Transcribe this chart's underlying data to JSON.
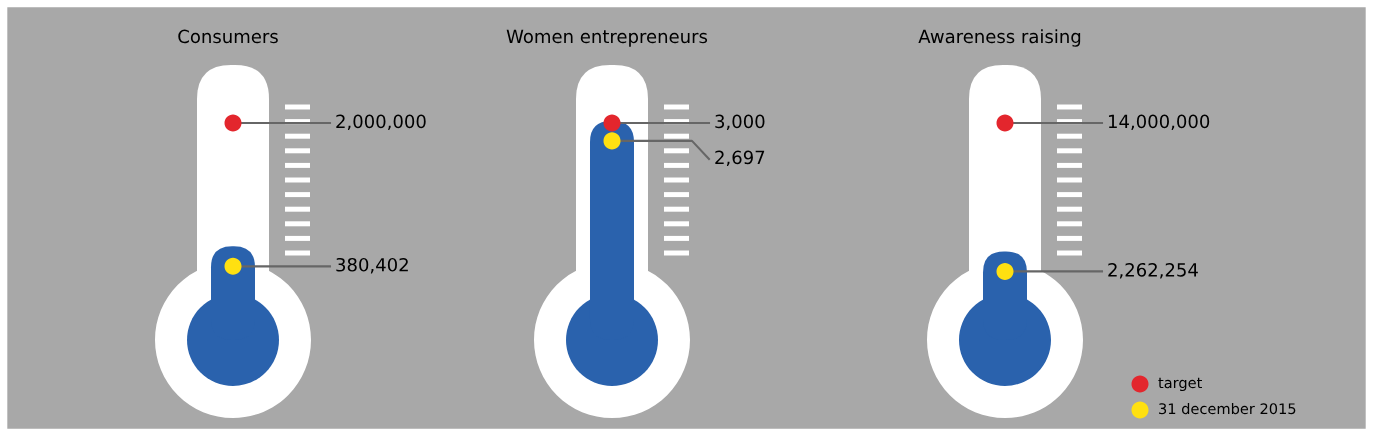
{
  "chart_data": {
    "type": "other",
    "categories": [
      "Consumers",
      "Women entrepreneurs",
      "Awareness raising"
    ],
    "series": [
      {
        "name": "target",
        "color": "#e3262d",
        "values": [
          2000000,
          3000,
          14000000
        ],
        "value_labels": [
          "2,000,000",
          "3,000",
          "14,000,000"
        ]
      },
      {
        "name": "31 december 2015",
        "color": "#ffe011",
        "values": [
          380402,
          2697,
          2262254
        ],
        "value_labels": [
          "380,402",
          "2,697",
          "2,262,254"
        ]
      }
    ],
    "legend": "bottom right"
  }
}
